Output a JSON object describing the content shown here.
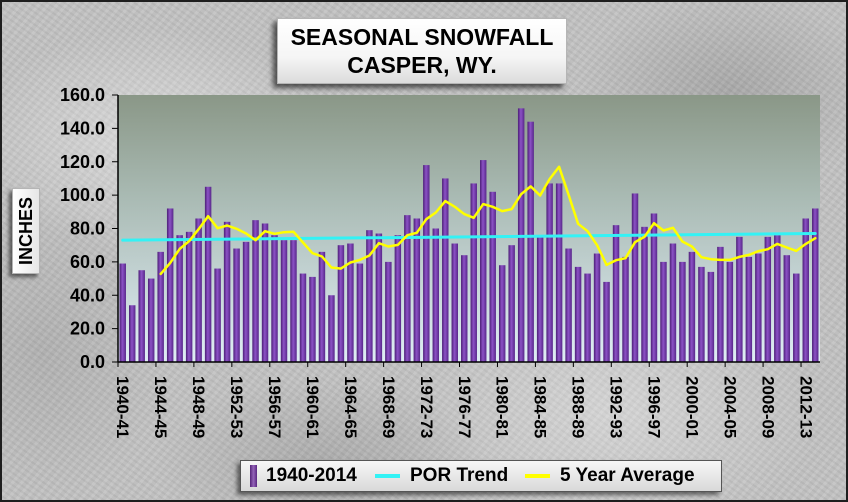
{
  "chart_data": {
    "type": "bar",
    "title": "SEASONAL SNOWFALL",
    "subtitle": "CASPER, WY.",
    "xlabel": "",
    "ylabel": "INCHES",
    "ylim": [
      0,
      160
    ],
    "yticks": [
      0,
      20,
      40,
      60,
      80,
      100,
      120,
      140,
      160
    ],
    "ytick_labels": [
      "0.0",
      "20.0",
      "40.0",
      "60.0",
      "80.0",
      "100.0",
      "120.0",
      "140.0",
      "160.0"
    ],
    "x_tick_labels": [
      "1940-41",
      "1944-45",
      "1948-49",
      "1952-53",
      "1956-57",
      "1960-61",
      "1964-65",
      "1968-69",
      "1972-73",
      "1976-77",
      "1980-81",
      "1984-85",
      "1988-89",
      "1992-93",
      "1996-97",
      "2000-01",
      "2004-05",
      "2008-09",
      "2012-13"
    ],
    "x_tick_interval": 4,
    "grid": false,
    "legend": "bottom",
    "plot_background": [
      "#8a9787",
      "#a9bab3",
      "#dfedf5"
    ],
    "series": [
      {
        "name": "1940-2014",
        "type": "bar",
        "color": "#7030a0",
        "values": [
          59,
          34,
          55,
          50,
          66,
          92,
          76,
          78,
          86,
          105,
          56,
          84,
          68,
          72,
          85,
          83,
          76,
          73,
          73,
          53,
          51,
          66,
          40,
          70,
          71,
          59,
          79,
          77,
          60,
          76,
          88,
          86,
          118,
          80,
          110,
          71,
          64,
          107,
          121,
          102,
          58,
          70,
          152,
          144,
          75,
          107,
          107,
          68,
          57,
          53,
          65,
          48,
          82,
          63,
          101,
          81,
          89,
          60,
          71,
          60,
          66,
          57,
          54,
          69,
          60,
          75,
          63,
          65,
          75,
          76,
          64,
          53,
          86,
          92
        ]
      },
      {
        "name": "POR Trend",
        "type": "trend",
        "color": "#33f2f5",
        "values": [
          73.0,
          77.0
        ]
      },
      {
        "name": "5 Year Average",
        "type": "line",
        "color": "#ffff00",
        "values": [
          null,
          null,
          null,
          null,
          52.8,
          59.4,
          67.8,
          72.4,
          79.6,
          87.4,
          80.2,
          81.8,
          79.8,
          77.0,
          73.0,
          78.4,
          76.8,
          77.8,
          78.0,
          71.6,
          65.2,
          63.2,
          56.6,
          56.0,
          59.6,
          61.2,
          63.8,
          71.2,
          69.2,
          70.2,
          76.0,
          77.4,
          85.6,
          89.6,
          96.4,
          93.0,
          88.6,
          86.4,
          94.6,
          93.0,
          90.4,
          91.6,
          100.6,
          105.2,
          99.8,
          109.6,
          117.0,
          100.2,
          82.8,
          78.4,
          70.0,
          58.2,
          61.0,
          62.2,
          71.8,
          75.0,
          83.2,
          78.8,
          80.4,
          72.2,
          69.2,
          62.8,
          61.6,
          61.2,
          61.2,
          63.0,
          64.2,
          66.4,
          67.6,
          70.8,
          68.6,
          66.6,
          70.8,
          74.2
        ]
      }
    ]
  }
}
